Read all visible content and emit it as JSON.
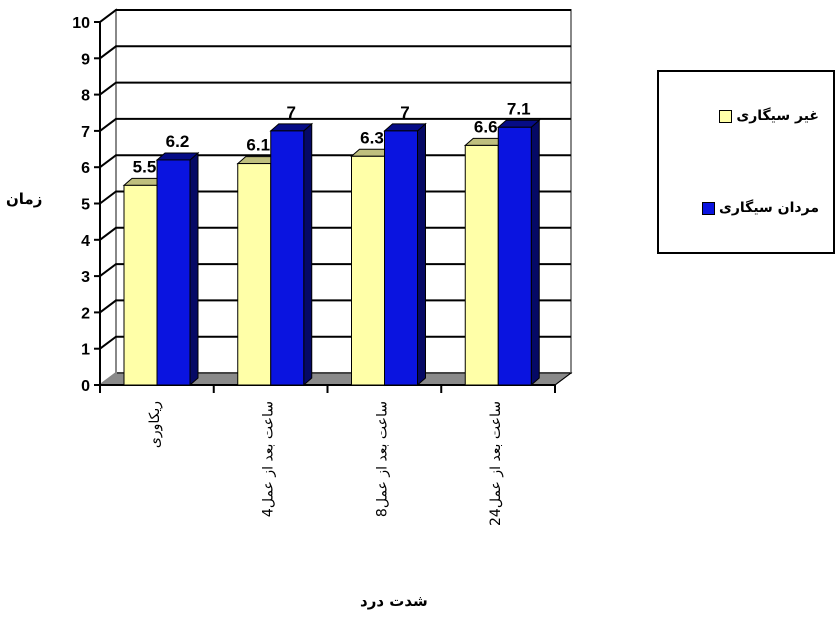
{
  "colors": {
    "non_smoker": "#ffffa8",
    "smoker": "#0a14e0"
  },
  "chart_data": {
    "type": "bar",
    "categories": [
      "ریکاوری",
      "4ساعت بعد از عمل",
      "8ساعت بعد از عمل",
      "24ساعت بعد از عمل"
    ],
    "series": [
      {
        "name": "غیر سیگاری",
        "values": [
          5.5,
          6.1,
          6.3,
          6.6
        ]
      },
      {
        "name": "مردان سیگاری",
        "values": [
          6.2,
          7,
          7,
          7.1
        ]
      }
    ],
    "ylabel": "زمان",
    "xlabel": "شدت درد",
    "ylim": [
      0,
      10
    ],
    "yticks": [
      "0",
      "1",
      "2",
      "3",
      "4",
      "5",
      "6",
      "7",
      "8",
      "9",
      "10"
    ],
    "data_labels": [
      [
        "5.5",
        "6.1",
        "6.3",
        "6.6"
      ],
      [
        "6.2",
        "7",
        "7",
        "7.1"
      ]
    ],
    "grid": true,
    "legend_position": "right"
  }
}
